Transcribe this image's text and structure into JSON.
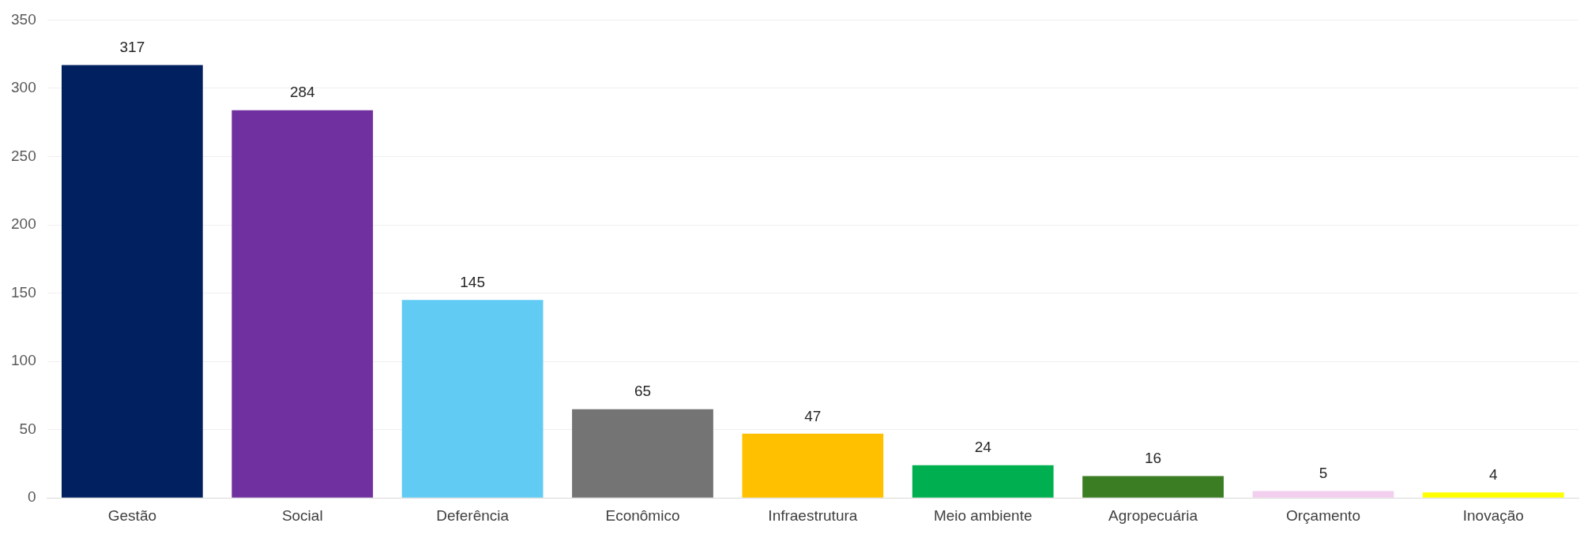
{
  "chart_data": {
    "type": "bar",
    "categories": [
      "Gestão",
      "Social",
      "Deferência",
      "Econômico",
      "Infraestrutura",
      "Meio ambiente",
      "Agropecuária",
      "Orçamento",
      "Inovação"
    ],
    "values": [
      317,
      284,
      145,
      65,
      47,
      24,
      16,
      5,
      4
    ],
    "colors": [
      "#002060",
      "#7030a0",
      "#61cbf3",
      "#747474",
      "#ffc000",
      "#00b050",
      "#3b7d23",
      "#f2cfee",
      "#ffff00"
    ],
    "ylim": [
      0,
      350
    ],
    "yticks": [
      0,
      50,
      100,
      150,
      200,
      250,
      300,
      350
    ],
    "grid": "y",
    "legend": false,
    "data_labels": true
  }
}
